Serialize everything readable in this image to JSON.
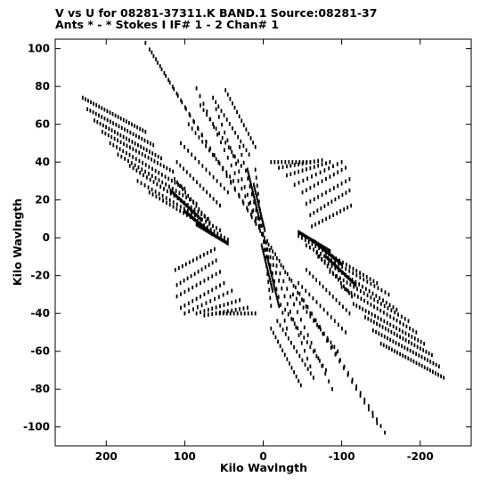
{
  "chart_data": {
    "type": "scatter",
    "title": "V vs U for 08281-37311.K BAND.1   Source:08281-37",
    "subtitle": "Ants * - *    Stokes I  IF# 1 - 2  Chan# 1",
    "xlabel": "Kilo Wavlngth",
    "ylabel": "Kilo Wavlngth",
    "xlim": [
      265,
      -265
    ],
    "ylim": [
      -110,
      105
    ],
    "x_ticks": [
      "200",
      "100",
      "0",
      "-100",
      "-200"
    ],
    "x_tick_values": [
      200,
      100,
      0,
      -100,
      -200
    ],
    "y_ticks": [
      "100",
      "80",
      "60",
      "40",
      "20",
      "0",
      "-20",
      "-40",
      "-60",
      "-80",
      "-100"
    ],
    "y_tick_values": [
      100,
      80,
      60,
      40,
      20,
      0,
      -20,
      -40,
      -60,
      -80,
      -100
    ],
    "grid": false,
    "color": "#000000",
    "series": [
      {
        "tracks": [
          {
            "u1": 150,
            "v1": 103,
            "u2": -155,
            "v2": -103,
            "n": 60
          },
          {
            "u1": 142,
            "v1": 98,
            "u2": -145,
            "v2": -98,
            "n": 55
          },
          {
            "u1": 85,
            "v1": 79,
            "u2": -88,
            "v2": -80,
            "n": 40
          },
          {
            "u1": 60,
            "v1": 68,
            "u2": -60,
            "v2": -68,
            "n": 34
          },
          {
            "u1": 30,
            "v1": 48,
            "u2": -30,
            "v2": -48,
            "n": 24
          },
          {
            "u1": 10,
            "v1": 36,
            "u2": -10,
            "v2": -36,
            "n": 18
          },
          {
            "u1": 230,
            "v1": 74,
            "u2": 150,
            "v2": 56,
            "n": 24
          },
          {
            "u1": -230,
            "v1": -74,
            "u2": -150,
            "v2": -56,
            "n": 24
          },
          {
            "u1": 224,
            "v1": 68,
            "u2": 140,
            "v2": 49,
            "n": 24
          },
          {
            "u1": -224,
            "v1": -68,
            "u2": -140,
            "v2": -49,
            "n": 24
          },
          {
            "u1": 215,
            "v1": 62,
            "u2": 130,
            "v2": 42,
            "n": 24
          },
          {
            "u1": -215,
            "v1": -62,
            "u2": -130,
            "v2": -42,
            "n": 24
          },
          {
            "u1": 205,
            "v1": 56,
            "u2": 115,
            "v2": 35,
            "n": 24
          },
          {
            "u1": -205,
            "v1": -56,
            "u2": -115,
            "v2": -35,
            "n": 24
          },
          {
            "u1": 195,
            "v1": 50,
            "u2": 100,
            "v2": 26,
            "n": 24
          },
          {
            "u1": -195,
            "v1": -50,
            "u2": -100,
            "v2": -26,
            "n": 24
          },
          {
            "u1": 185,
            "v1": 44,
            "u2": 85,
            "v2": 18,
            "n": 24
          },
          {
            "u1": -185,
            "v1": -44,
            "u2": -85,
            "v2": -18,
            "n": 24
          },
          {
            "u1": 170,
            "v1": 38,
            "u2": 70,
            "v2": 10,
            "n": 24
          },
          {
            "u1": -170,
            "v1": -38,
            "u2": -70,
            "v2": -10,
            "n": 24
          },
          {
            "u1": 160,
            "v1": 30,
            "u2": 55,
            "v2": 4,
            "n": 24
          },
          {
            "u1": -160,
            "v1": -30,
            "u2": -55,
            "v2": -4,
            "n": 24
          },
          {
            "u1": 145,
            "v1": 24,
            "u2": 45,
            "v2": -1,
            "n": 24
          },
          {
            "u1": -145,
            "v1": -24,
            "u2": -45,
            "v2": 1,
            "n": 24
          },
          {
            "u1": 118,
            "v1": 25,
            "u2": 80,
            "v2": 10,
            "n": 22
          },
          {
            "u1": -118,
            "v1": -25,
            "u2": -80,
            "v2": -10,
            "n": 22
          },
          {
            "u1": 100,
            "v1": 14,
            "u2": 65,
            "v2": 2,
            "n": 22
          },
          {
            "u1": -100,
            "v1": -14,
            "u2": -65,
            "v2": -2,
            "n": 22
          },
          {
            "u1": 85,
            "v1": 7,
            "u2": 45,
            "v2": -3,
            "n": 22
          },
          {
            "u1": -85,
            "v1": -7,
            "u2": -45,
            "v2": 3,
            "n": 22
          },
          {
            "u1": 20,
            "v1": 36,
            "u2": 5,
            "v2": 10,
            "n": 20
          },
          {
            "u1": -20,
            "v1": -36,
            "u2": -5,
            "v2": -10,
            "n": 20
          },
          {
            "u1": 12,
            "v1": 28,
            "u2": -2,
            "v2": 4,
            "n": 18
          },
          {
            "u1": -12,
            "v1": -28,
            "u2": 2,
            "v2": -4,
            "n": 18
          },
          {
            "u1": -10,
            "v1": 40,
            "u2": -60,
            "v2": 40,
            "n": 12
          },
          {
            "u1": 10,
            "v1": -40,
            "u2": 60,
            "v2": -40,
            "n": 12
          },
          {
            "u1": -20,
            "v1": 37,
            "u2": -75,
            "v2": 41,
            "n": 12
          },
          {
            "u1": 20,
            "v1": -37,
            "u2": 75,
            "v2": -41,
            "n": 12
          },
          {
            "u1": -30,
            "v1": 33,
            "u2": -85,
            "v2": 40,
            "n": 12
          },
          {
            "u1": 30,
            "v1": -33,
            "u2": 85,
            "v2": -40,
            "n": 12
          },
          {
            "u1": -40,
            "v1": 28,
            "u2": -100,
            "v2": 40,
            "n": 12
          },
          {
            "u1": 40,
            "v1": -28,
            "u2": 100,
            "v2": -40,
            "n": 12
          },
          {
            "u1": -50,
            "v1": 24,
            "u2": -105,
            "v2": 37,
            "n": 12
          },
          {
            "u1": 50,
            "v1": -24,
            "u2": 105,
            "v2": -37,
            "n": 12
          },
          {
            "u1": -55,
            "v1": 18,
            "u2": -110,
            "v2": 31,
            "n": 12
          },
          {
            "u1": 55,
            "v1": -18,
            "u2": 110,
            "v2": -31,
            "n": 12
          },
          {
            "u1": -60,
            "v1": 12,
            "u2": -110,
            "v2": 25,
            "n": 12
          },
          {
            "u1": 60,
            "v1": -12,
            "u2": 110,
            "v2": -25,
            "n": 12
          },
          {
            "u1": -62,
            "v1": 6,
            "u2": -112,
            "v2": 17,
            "n": 12
          },
          {
            "u1": 62,
            "v1": -6,
            "u2": 112,
            "v2": -17,
            "n": 12
          },
          {
            "u1": 48,
            "v1": 78,
            "u2": 10,
            "v2": 48,
            "n": 14
          },
          {
            "u1": -48,
            "v1": -78,
            "u2": -10,
            "v2": -48,
            "n": 14
          },
          {
            "u1": 64,
            "v1": 74,
            "u2": 18,
            "v2": 44,
            "n": 14
          },
          {
            "u1": -64,
            "v1": -74,
            "u2": -18,
            "v2": -44,
            "n": 14
          },
          {
            "u1": 80,
            "v1": 70,
            "u2": 28,
            "v2": 38,
            "n": 14
          },
          {
            "u1": -80,
            "v1": -70,
            "u2": -28,
            "v2": -38,
            "n": 14
          },
          {
            "u1": 95,
            "v1": 60,
            "u2": 38,
            "v2": 30,
            "n": 14
          },
          {
            "u1": -95,
            "v1": -60,
            "u2": -38,
            "v2": -30,
            "n": 14
          },
          {
            "u1": 105,
            "v1": 50,
            "u2": 45,
            "v2": 24,
            "n": 14
          },
          {
            "u1": -105,
            "v1": -50,
            "u2": -45,
            "v2": -24,
            "n": 14
          },
          {
            "u1": 110,
            "v1": 40,
            "u2": 55,
            "v2": 17,
            "n": 14
          },
          {
            "u1": -110,
            "v1": -40,
            "u2": -55,
            "v2": -17,
            "n": 14
          },
          {
            "u1": 113,
            "v1": 31,
            "u2": 68,
            "v2": 8,
            "n": 14
          },
          {
            "u1": -113,
            "v1": -31,
            "u2": -68,
            "v2": -8,
            "n": 14
          }
        ]
      }
    ]
  }
}
